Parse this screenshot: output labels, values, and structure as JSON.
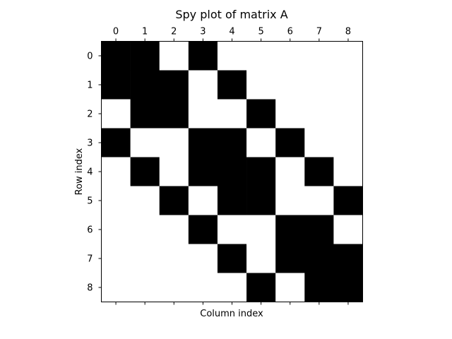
{
  "chart_data": {
    "type": "heatmap",
    "title": "Spy plot of matrix A",
    "xlabel": "Column index",
    "ylabel": "Row index",
    "x_ticks": [
      "0",
      "1",
      "2",
      "3",
      "4",
      "5",
      "6",
      "7",
      "8"
    ],
    "y_ticks": [
      "0",
      "1",
      "2",
      "3",
      "4",
      "5",
      "6",
      "7",
      "8"
    ],
    "x_ticks_position": "top",
    "grid": false,
    "colors": {
      "nonzero": "#000000",
      "zero": "#ffffff"
    },
    "matrix": [
      [
        1,
        1,
        0,
        1,
        0,
        0,
        0,
        0,
        0
      ],
      [
        1,
        1,
        1,
        0,
        1,
        0,
        0,
        0,
        0
      ],
      [
        0,
        1,
        1,
        0,
        0,
        1,
        0,
        0,
        0
      ],
      [
        1,
        0,
        0,
        1,
        1,
        0,
        1,
        0,
        0
      ],
      [
        0,
        1,
        0,
        1,
        1,
        1,
        0,
        1,
        0
      ],
      [
        0,
        0,
        1,
        0,
        1,
        1,
        0,
        0,
        1
      ],
      [
        0,
        0,
        0,
        1,
        0,
        0,
        1,
        1,
        0
      ],
      [
        0,
        0,
        0,
        0,
        1,
        0,
        1,
        1,
        1
      ],
      [
        0,
        0,
        0,
        0,
        0,
        1,
        0,
        1,
        1
      ]
    ]
  }
}
